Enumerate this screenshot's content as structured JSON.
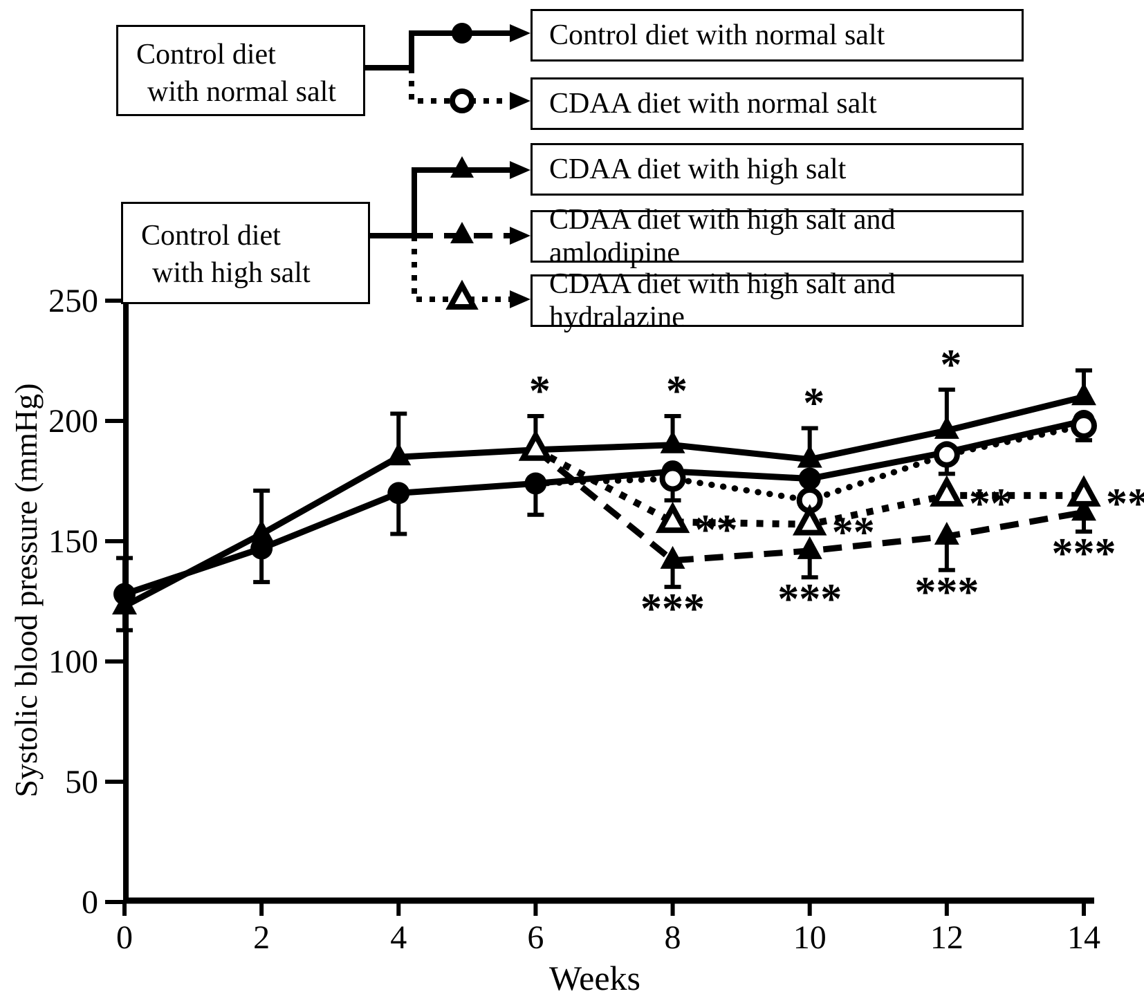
{
  "figure": {
    "background": "#ffffff",
    "ink": "#000000"
  },
  "flowchart": {
    "source_boxes": [
      {
        "lines": [
          "Control diet",
          "with normal salt"
        ]
      },
      {
        "lines": [
          "Control diet",
          "with high salt"
        ]
      }
    ],
    "result_boxes": [
      {
        "label": "Control diet with normal salt"
      },
      {
        "label": "CDAA diet with normal salt"
      },
      {
        "label": "CDAA diet with high salt"
      },
      {
        "label": "CDAA diet with high salt and amlodipine"
      },
      {
        "label": "CDAA diet with high salt and hydralazine"
      }
    ],
    "connectors": [
      {
        "from": 0,
        "to": 0,
        "style": "solid",
        "marker": "circle-filled"
      },
      {
        "from": 0,
        "to": 1,
        "style": "dotted",
        "marker": "circle-open"
      },
      {
        "from": 1,
        "to": 2,
        "style": "solid",
        "marker": "triangle-filled"
      },
      {
        "from": 1,
        "to": 3,
        "style": "dashed",
        "marker": "triangle-filled"
      },
      {
        "from": 1,
        "to": 4,
        "style": "dotted",
        "marker": "triangle-open"
      }
    ]
  },
  "chart_data": {
    "type": "line",
    "title": "",
    "xlabel": "Weeks",
    "ylabel": "Systolic blood pressure (mmHg)",
    "x_ticks": [
      0,
      2,
      4,
      6,
      8,
      10,
      12,
      14
    ],
    "y_ticks": [
      0,
      50,
      100,
      150,
      200,
      250
    ],
    "xlim": [
      0,
      14
    ],
    "ylim": [
      0,
      250
    ],
    "grid": false,
    "legend_position": "top-flowchart",
    "series": [
      {
        "name": "Control diet with normal salt",
        "marker": "circle-filled",
        "line": "solid",
        "weeks": [
          0,
          2,
          4,
          6,
          8,
          10,
          12,
          14
        ],
        "values": [
          128,
          147,
          170,
          174,
          179,
          176,
          187,
          200
        ],
        "marker_weeks": [
          0,
          2,
          4,
          6,
          8,
          10,
          12,
          14
        ],
        "err_up": [
          15,
          0,
          0,
          0,
          0,
          0,
          0,
          0
        ],
        "err_down": [
          15,
          0,
          17,
          13,
          0,
          0,
          0,
          0
        ]
      },
      {
        "name": "CDAA diet with normal salt",
        "marker": "circle-open",
        "line": "dotted-round",
        "weeks": [
          6,
          8,
          10,
          12,
          14
        ],
        "values": [
          174,
          176,
          167,
          186,
          198
        ],
        "marker_weeks": [
          8,
          10,
          12,
          14
        ],
        "err_up": [
          0,
          0,
          0,
          0,
          0
        ],
        "err_down": [
          0,
          9,
          0,
          8,
          6
        ]
      },
      {
        "name": "CDAA diet with high salt",
        "marker": "triangle-filled",
        "line": "solid",
        "weeks": [
          0,
          2,
          4,
          6,
          8,
          10,
          12,
          14
        ],
        "values": [
          123,
          153,
          185,
          188,
          190,
          184,
          196,
          210
        ],
        "marker_weeks": [
          0,
          2,
          4,
          8,
          10,
          12,
          14
        ],
        "err_up": [
          0,
          18,
          18,
          14,
          12,
          13,
          17,
          11
        ],
        "err_down": [
          0,
          20,
          0,
          0,
          0,
          0,
          0,
          0
        ]
      },
      {
        "name": "CDAA diet with high salt and amlodipine",
        "marker": "triangle-filled",
        "line": "dashed",
        "weeks": [
          6,
          8,
          10,
          12,
          14
        ],
        "values": [
          188,
          142,
          146,
          152,
          162
        ],
        "marker_weeks": [
          8,
          10,
          12,
          14
        ],
        "err_up": [
          0,
          0,
          0,
          0,
          0
        ],
        "err_down": [
          0,
          11,
          11,
          14,
          8
        ]
      },
      {
        "name": "CDAA diet with high salt and hydralazine",
        "marker": "triangle-open",
        "line": "dotted-square",
        "weeks": [
          6,
          8,
          10,
          12,
          14
        ],
        "values": [
          188,
          158,
          157,
          169,
          169
        ],
        "marker_weeks": [
          6,
          8,
          10,
          12,
          14
        ],
        "err_up": [
          0,
          0,
          0,
          0,
          0
        ],
        "err_down": [
          0,
          0,
          0,
          0,
          0
        ]
      }
    ],
    "annotations": {
      "single_star": [
        {
          "week": 6,
          "value": 202
        },
        {
          "week": 8,
          "value": 202
        },
        {
          "week": 10,
          "value": 197
        },
        {
          "week": 12,
          "value": 213
        }
      ],
      "double_star": [
        {
          "week": 8,
          "value": 158
        },
        {
          "week": 10,
          "value": 157
        },
        {
          "week": 12,
          "value": 169
        },
        {
          "week": 14,
          "value": 169
        }
      ],
      "triple_star": [
        {
          "week": 8,
          "value": 131
        },
        {
          "week": 10,
          "value": 135
        },
        {
          "week": 12,
          "value": 138
        },
        {
          "week": 14,
          "value": 154
        }
      ]
    },
    "symbols": {
      "single": "*",
      "double": "**",
      "triple": "***"
    }
  }
}
